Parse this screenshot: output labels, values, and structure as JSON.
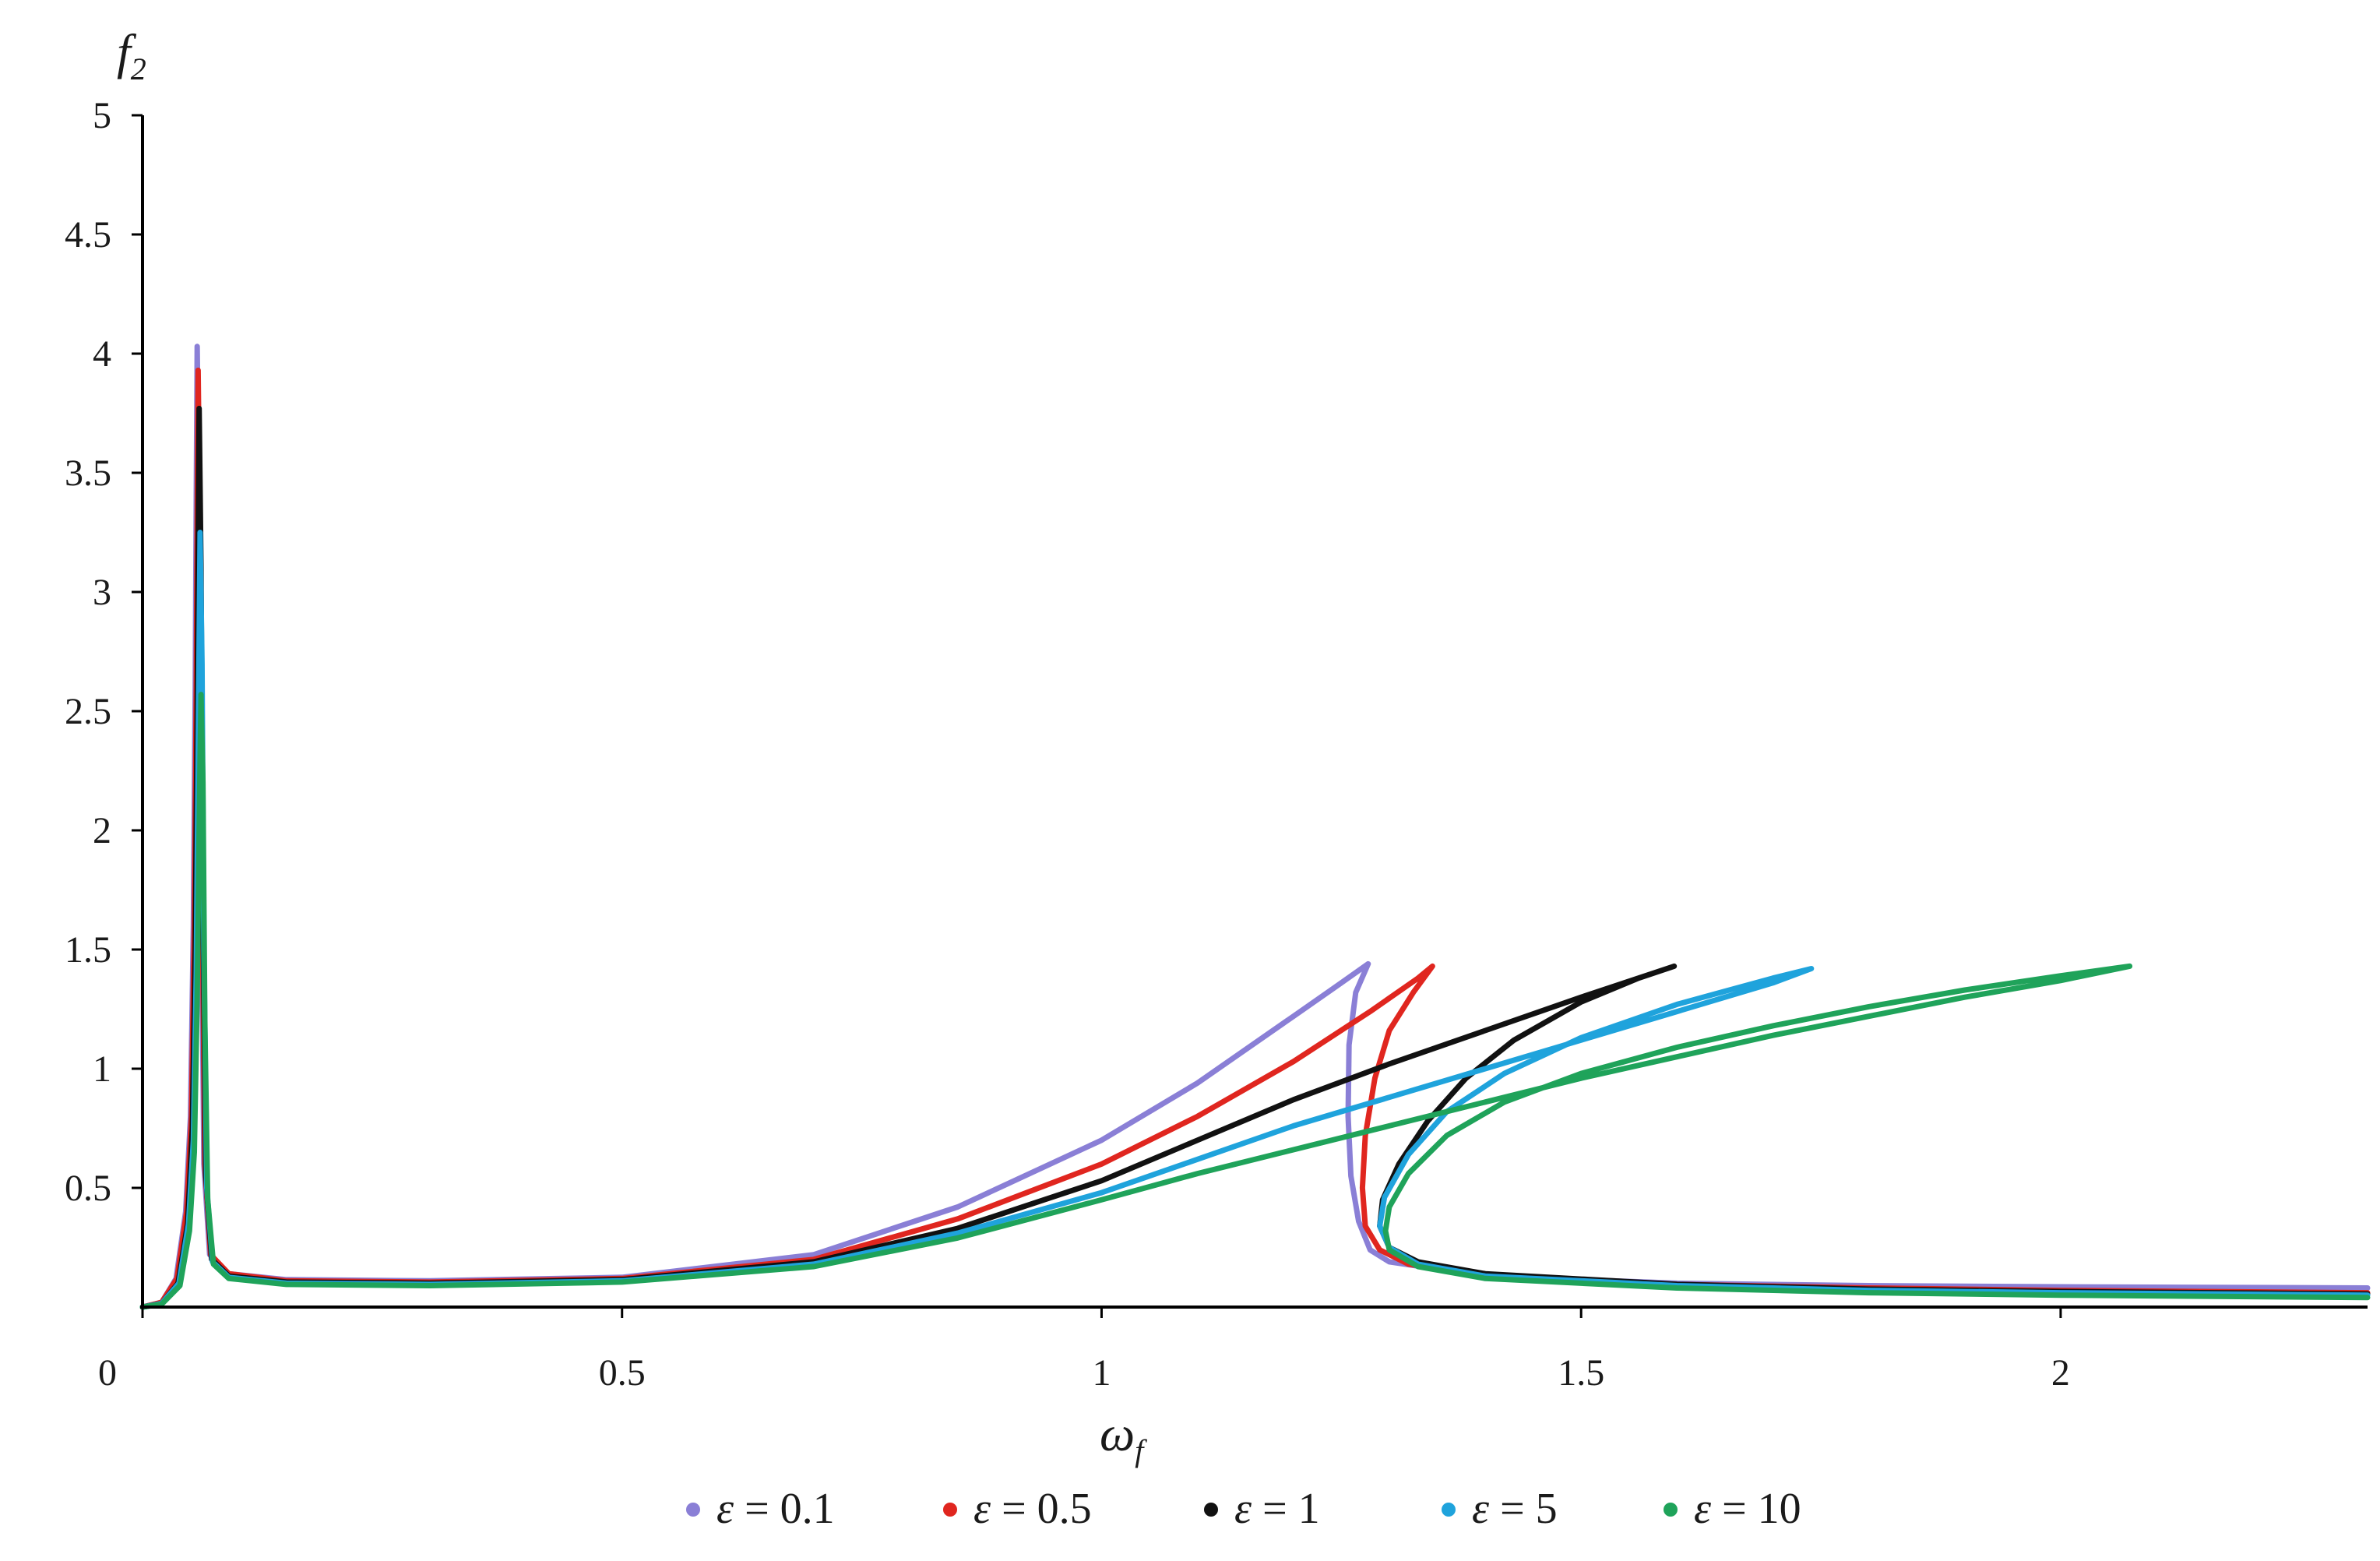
{
  "chart_data": {
    "type": "line",
    "title": "",
    "xlabel": "ω",
    "xlabel_sub": "f",
    "ylabel": "f",
    "ylabel_sub": "2",
    "xlim": [
      0,
      2.32
    ],
    "ylim": [
      0,
      5
    ],
    "x_ticks": [
      0,
      0.5,
      1,
      1.5,
      2
    ],
    "x_tick_labels": [
      "0",
      "0.5",
      "1",
      "1.5",
      "2"
    ],
    "y_ticks": [
      0.5,
      1,
      1.5,
      2,
      2.5,
      3,
      3.5,
      4,
      4.5,
      5
    ],
    "y_tick_labels": [
      "0.5",
      "1",
      "1.5",
      "2",
      "2.5",
      "3",
      "3.5",
      "4",
      "4.5",
      "5"
    ],
    "grid": false,
    "legend_position": "bottom-center",
    "series": [
      {
        "name": "ε = 0.1",
        "legend_symbol": "ε",
        "legend_value": "= 0.1",
        "color": "#8a7fd6",
        "points": [
          [
            0.0,
            0.0
          ],
          [
            0.02,
            0.02
          ],
          [
            0.035,
            0.12
          ],
          [
            0.045,
            0.4
          ],
          [
            0.05,
            0.8
          ],
          [
            0.053,
            1.6
          ],
          [
            0.055,
            2.6
          ],
          [
            0.056,
            3.4
          ],
          [
            0.057,
            4.03
          ],
          [
            0.059,
            3.3
          ],
          [
            0.061,
            1.9
          ],
          [
            0.064,
            0.6
          ],
          [
            0.07,
            0.22
          ],
          [
            0.09,
            0.14
          ],
          [
            0.15,
            0.115
          ],
          [
            0.3,
            0.11
          ],
          [
            0.5,
            0.125
          ],
          [
            0.7,
            0.22
          ],
          [
            0.85,
            0.42
          ],
          [
            1.0,
            0.7
          ],
          [
            1.1,
            0.94
          ],
          [
            1.2,
            1.22
          ],
          [
            1.25,
            1.36
          ],
          [
            1.278,
            1.44
          ],
          [
            1.265,
            1.32
          ],
          [
            1.258,
            1.1
          ],
          [
            1.257,
            0.8
          ],
          [
            1.26,
            0.55
          ],
          [
            1.268,
            0.36
          ],
          [
            1.28,
            0.24
          ],
          [
            1.3,
            0.19
          ],
          [
            1.4,
            0.13
          ],
          [
            1.6,
            0.1
          ],
          [
            1.8,
            0.09
          ],
          [
            2.0,
            0.085
          ],
          [
            2.32,
            0.08
          ]
        ]
      },
      {
        "name": "ε = 0.5",
        "legend_symbol": "ε",
        "legend_value": "= 0.5",
        "color": "#e0261f",
        "points": [
          [
            0.0,
            0.0
          ],
          [
            0.02,
            0.02
          ],
          [
            0.036,
            0.12
          ],
          [
            0.046,
            0.4
          ],
          [
            0.051,
            0.8
          ],
          [
            0.054,
            1.6
          ],
          [
            0.056,
            2.6
          ],
          [
            0.057,
            3.3
          ],
          [
            0.058,
            3.93
          ],
          [
            0.06,
            3.2
          ],
          [
            0.062,
            1.8
          ],
          [
            0.065,
            0.6
          ],
          [
            0.071,
            0.22
          ],
          [
            0.09,
            0.14
          ],
          [
            0.15,
            0.11
          ],
          [
            0.3,
            0.105
          ],
          [
            0.5,
            0.12
          ],
          [
            0.7,
            0.2
          ],
          [
            0.85,
            0.37
          ],
          [
            1.0,
            0.6
          ],
          [
            1.1,
            0.8
          ],
          [
            1.2,
            1.03
          ],
          [
            1.28,
            1.24
          ],
          [
            1.33,
            1.38
          ],
          [
            1.345,
            1.43
          ],
          [
            1.325,
            1.32
          ],
          [
            1.3,
            1.16
          ],
          [
            1.285,
            0.96
          ],
          [
            1.275,
            0.72
          ],
          [
            1.272,
            0.5
          ],
          [
            1.275,
            0.34
          ],
          [
            1.29,
            0.24
          ],
          [
            1.32,
            0.18
          ],
          [
            1.4,
            0.13
          ],
          [
            1.6,
            0.095
          ],
          [
            1.8,
            0.08
          ],
          [
            2.0,
            0.07
          ],
          [
            2.32,
            0.06
          ]
        ]
      },
      {
        "name": "ε = 1",
        "legend_symbol": "ε",
        "legend_value": "= 1",
        "color": "#111111",
        "points": [
          [
            0.0,
            0.0
          ],
          [
            0.02,
            0.015
          ],
          [
            0.037,
            0.1
          ],
          [
            0.047,
            0.35
          ],
          [
            0.052,
            0.75
          ],
          [
            0.055,
            1.5
          ],
          [
            0.057,
            2.5
          ],
          [
            0.058,
            3.2
          ],
          [
            0.059,
            3.77
          ],
          [
            0.061,
            3.1
          ],
          [
            0.063,
            1.7
          ],
          [
            0.066,
            0.55
          ],
          [
            0.072,
            0.2
          ],
          [
            0.09,
            0.13
          ],
          [
            0.15,
            0.105
          ],
          [
            0.3,
            0.1
          ],
          [
            0.5,
            0.115
          ],
          [
            0.7,
            0.19
          ],
          [
            0.85,
            0.33
          ],
          [
            1.0,
            0.53
          ],
          [
            1.1,
            0.7
          ],
          [
            1.2,
            0.87
          ],
          [
            1.3,
            1.02
          ],
          [
            1.4,
            1.16
          ],
          [
            1.5,
            1.3
          ],
          [
            1.597,
            1.43
          ],
          [
            1.56,
            1.38
          ],
          [
            1.5,
            1.28
          ],
          [
            1.43,
            1.12
          ],
          [
            1.38,
            0.96
          ],
          [
            1.34,
            0.78
          ],
          [
            1.31,
            0.6
          ],
          [
            1.293,
            0.45
          ],
          [
            1.29,
            0.34
          ],
          [
            1.3,
            0.25
          ],
          [
            1.33,
            0.19
          ],
          [
            1.4,
            0.14
          ],
          [
            1.6,
            0.095
          ],
          [
            1.8,
            0.075
          ],
          [
            2.0,
            0.065
          ],
          [
            2.32,
            0.055
          ]
        ]
      },
      {
        "name": "ε = 5",
        "legend_symbol": "ε",
        "legend_value": "= 5",
        "color": "#1fa3dc",
        "points": [
          [
            0.0,
            0.0
          ],
          [
            0.02,
            0.015
          ],
          [
            0.038,
            0.1
          ],
          [
            0.048,
            0.35
          ],
          [
            0.053,
            0.7
          ],
          [
            0.056,
            1.4
          ],
          [
            0.058,
            2.3
          ],
          [
            0.059,
            2.8
          ],
          [
            0.06,
            3.25
          ],
          [
            0.062,
            2.7
          ],
          [
            0.064,
            1.5
          ],
          [
            0.067,
            0.5
          ],
          [
            0.073,
            0.19
          ],
          [
            0.09,
            0.125
          ],
          [
            0.15,
            0.1
          ],
          [
            0.3,
            0.095
          ],
          [
            0.5,
            0.11
          ],
          [
            0.7,
            0.18
          ],
          [
            0.85,
            0.31
          ],
          [
            1.0,
            0.48
          ],
          [
            1.1,
            0.62
          ],
          [
            1.2,
            0.76
          ],
          [
            1.3,
            0.88
          ],
          [
            1.4,
            1.0
          ],
          [
            1.5,
            1.12
          ],
          [
            1.6,
            1.24
          ],
          [
            1.7,
            1.36
          ],
          [
            1.74,
            1.42
          ],
          [
            1.7,
            1.38
          ],
          [
            1.6,
            1.27
          ],
          [
            1.5,
            1.13
          ],
          [
            1.42,
            0.98
          ],
          [
            1.36,
            0.82
          ],
          [
            1.32,
            0.64
          ],
          [
            1.295,
            0.46
          ],
          [
            1.29,
            0.34
          ],
          [
            1.3,
            0.25
          ],
          [
            1.33,
            0.18
          ],
          [
            1.4,
            0.13
          ],
          [
            1.6,
            0.09
          ],
          [
            1.8,
            0.07
          ],
          [
            2.0,
            0.06
          ],
          [
            2.32,
            0.05
          ]
        ]
      },
      {
        "name": "ε = 10",
        "legend_symbol": "ε",
        "legend_value": "= 10",
        "color": "#1fa35a",
        "points": [
          [
            0.0,
            0.0
          ],
          [
            0.02,
            0.012
          ],
          [
            0.039,
            0.09
          ],
          [
            0.049,
            0.32
          ],
          [
            0.054,
            0.65
          ],
          [
            0.057,
            1.3
          ],
          [
            0.059,
            2.0
          ],
          [
            0.06,
            2.3
          ],
          [
            0.061,
            2.57
          ],
          [
            0.063,
            2.2
          ],
          [
            0.065,
            1.2
          ],
          [
            0.068,
            0.45
          ],
          [
            0.074,
            0.18
          ],
          [
            0.09,
            0.12
          ],
          [
            0.15,
            0.095
          ],
          [
            0.3,
            0.09
          ],
          [
            0.5,
            0.105
          ],
          [
            0.7,
            0.17
          ],
          [
            0.85,
            0.29
          ],
          [
            1.0,
            0.45
          ],
          [
            1.1,
            0.56
          ],
          [
            1.2,
            0.66
          ],
          [
            1.3,
            0.76
          ],
          [
            1.4,
            0.86
          ],
          [
            1.5,
            0.96
          ],
          [
            1.6,
            1.05
          ],
          [
            1.7,
            1.14
          ],
          [
            1.8,
            1.22
          ],
          [
            1.9,
            1.3
          ],
          [
            2.0,
            1.37
          ],
          [
            2.072,
            1.43
          ],
          [
            2.0,
            1.39
          ],
          [
            1.9,
            1.33
          ],
          [
            1.8,
            1.26
          ],
          [
            1.7,
            1.18
          ],
          [
            1.6,
            1.09
          ],
          [
            1.5,
            0.98
          ],
          [
            1.42,
            0.86
          ],
          [
            1.36,
            0.72
          ],
          [
            1.32,
            0.56
          ],
          [
            1.3,
            0.42
          ],
          [
            1.296,
            0.32
          ],
          [
            1.3,
            0.24
          ],
          [
            1.33,
            0.17
          ],
          [
            1.4,
            0.12
          ],
          [
            1.6,
            0.08
          ],
          [
            1.8,
            0.06
          ],
          [
            2.0,
            0.05
          ],
          [
            2.32,
            0.04
          ]
        ]
      }
    ]
  }
}
